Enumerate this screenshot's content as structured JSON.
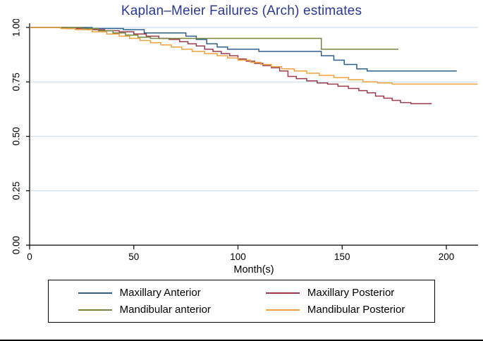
{
  "colors": {
    "title": "#2b3990",
    "grid": "#cfe0f1",
    "axis": "#000000"
  },
  "chart_data": {
    "type": "line",
    "subtype": "kaplan-meier-step",
    "title": "Kaplan–Meier Failures (Arch) estimates",
    "xlabel": "Month(s)",
    "ylabel": "",
    "xlim": [
      0,
      220
    ],
    "ylim": [
      0.0,
      1.0
    ],
    "xticks": [
      0,
      50,
      100,
      150,
      200
    ],
    "ytick_values": [
      0.0,
      0.25,
      0.5,
      0.75,
      1.0
    ],
    "ytick_labels": [
      "0.00",
      "0.25",
      "0.50",
      "0.75",
      "1.00"
    ],
    "grid": "horizontal",
    "legend_position": "bottom",
    "series": [
      {
        "name": "Maxillary Anterior",
        "color": "#2e5e8e",
        "points": [
          [
            0,
            1.0
          ],
          [
            30,
            0.995
          ],
          [
            45,
            0.99
          ],
          [
            55,
            0.975
          ],
          [
            75,
            0.96
          ],
          [
            80,
            0.945
          ],
          [
            85,
            0.925
          ],
          [
            90,
            0.91
          ],
          [
            95,
            0.9
          ],
          [
            110,
            0.89
          ],
          [
            140,
            0.87
          ],
          [
            146,
            0.85
          ],
          [
            151,
            0.83
          ],
          [
            157,
            0.81
          ],
          [
            162,
            0.8
          ],
          [
            205,
            0.8
          ]
        ]
      },
      {
        "name": "Maxillary Posterior",
        "color": "#9d3b4d",
        "points": [
          [
            0,
            1.0
          ],
          [
            18,
            0.995
          ],
          [
            28,
            0.99
          ],
          [
            36,
            0.985
          ],
          [
            43,
            0.98
          ],
          [
            50,
            0.97
          ],
          [
            56,
            0.96
          ],
          [
            62,
            0.95
          ],
          [
            67,
            0.945
          ],
          [
            72,
            0.935
          ],
          [
            76,
            0.925
          ],
          [
            80,
            0.915
          ],
          [
            84,
            0.9
          ],
          [
            88,
            0.89
          ],
          [
            92,
            0.88
          ],
          [
            96,
            0.87
          ],
          [
            100,
            0.855
          ],
          [
            104,
            0.845
          ],
          [
            108,
            0.835
          ],
          [
            112,
            0.825
          ],
          [
            116,
            0.815
          ],
          [
            120,
            0.8
          ],
          [
            124,
            0.775
          ],
          [
            128,
            0.765
          ],
          [
            133,
            0.755
          ],
          [
            138,
            0.745
          ],
          [
            143,
            0.74
          ],
          [
            148,
            0.73
          ],
          [
            153,
            0.72
          ],
          [
            158,
            0.71
          ],
          [
            162,
            0.7
          ],
          [
            166,
            0.685
          ],
          [
            170,
            0.675
          ],
          [
            174,
            0.665
          ],
          [
            178,
            0.655
          ],
          [
            183,
            0.65
          ],
          [
            193,
            0.65
          ]
        ]
      },
      {
        "name": "Mandibular anterior",
        "color": "#73863c",
        "points": [
          [
            0,
            1.0
          ],
          [
            25,
            0.995
          ],
          [
            33,
            0.985
          ],
          [
            40,
            0.975
          ],
          [
            46,
            0.965
          ],
          [
            52,
            0.955
          ],
          [
            58,
            0.95
          ],
          [
            140,
            0.9
          ],
          [
            177,
            0.9
          ]
        ]
      },
      {
        "name": "Mandibular Posterior",
        "color": "#efa23e",
        "points": [
          [
            0,
            1.0
          ],
          [
            15,
            0.995
          ],
          [
            22,
            0.99
          ],
          [
            30,
            0.98
          ],
          [
            37,
            0.97
          ],
          [
            43,
            0.96
          ],
          [
            48,
            0.95
          ],
          [
            53,
            0.94
          ],
          [
            58,
            0.93
          ],
          [
            63,
            0.92
          ],
          [
            68,
            0.91
          ],
          [
            73,
            0.9
          ],
          [
            78,
            0.89
          ],
          [
            84,
            0.88
          ],
          [
            90,
            0.87
          ],
          [
            95,
            0.86
          ],
          [
            100,
            0.85
          ],
          [
            106,
            0.84
          ],
          [
            111,
            0.83
          ],
          [
            116,
            0.82
          ],
          [
            121,
            0.81
          ],
          [
            127,
            0.8
          ],
          [
            133,
            0.79
          ],
          [
            139,
            0.78
          ],
          [
            146,
            0.77
          ],
          [
            153,
            0.76
          ],
          [
            160,
            0.75
          ],
          [
            167,
            0.745
          ],
          [
            174,
            0.74
          ],
          [
            215,
            0.74
          ]
        ]
      }
    ]
  }
}
